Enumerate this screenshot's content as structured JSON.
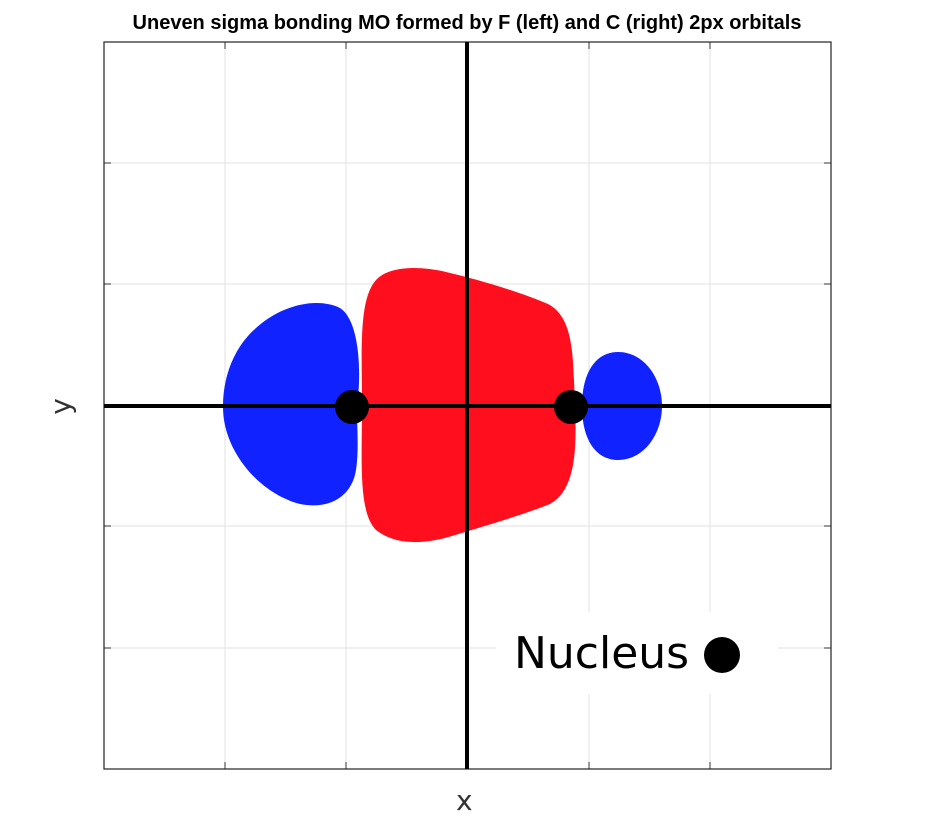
{
  "title": "Uneven sigma bonding MO formed by F (left) and C (right) 2px orbitals",
  "axes": {
    "xlabel": "x",
    "ylabel": "y",
    "grid": true
  },
  "legend": {
    "label": "Nucleus",
    "marker": "black-dot",
    "placement": "bottom-right"
  },
  "colors": {
    "positive_lobe": "#ff0f1e",
    "negative_lobe": "#0f22ff",
    "nucleus": "#000000",
    "grid": "#e2e2e2"
  },
  "orbital_lobes": [
    {
      "name": "F outer lobe",
      "phase": "negative",
      "color": "#0f22ff"
    },
    {
      "name": "bonding lobe",
      "phase": "positive",
      "color": "#ff0f1e"
    },
    {
      "name": "C outer lobe",
      "phase": "negative",
      "color": "#0f22ff"
    }
  ],
  "nuclei": [
    {
      "atom": "F",
      "side": "left"
    },
    {
      "atom": "C",
      "side": "right"
    }
  ]
}
